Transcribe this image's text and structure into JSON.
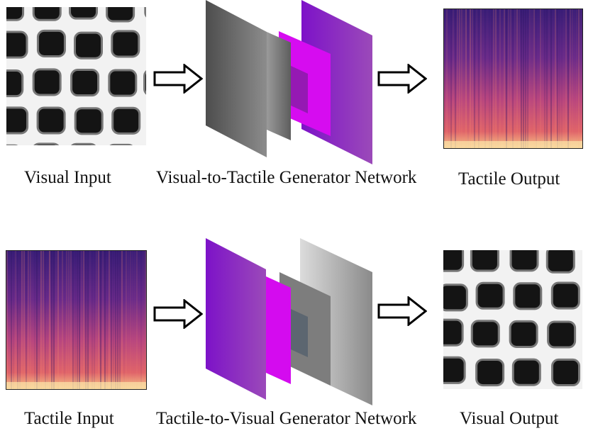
{
  "top_row": {
    "input_label": "Visual Input",
    "network_label": "Visual-to-Tactile Generator Network",
    "output_label": "Tactile Output"
  },
  "bottom_row": {
    "input_label": "Tactile Input",
    "network_label": "Tactile-to-Visual Generator Network",
    "output_label": "Visual Output"
  },
  "colors": {
    "gray_layer": "#6e6e6e",
    "violet_layer": "#8e2bbf",
    "magenta_layer": "#d40bef",
    "spectrogram_low": "#2a1a66",
    "spectrogram_high": "#f3b27a",
    "arrow_stroke": "#000000"
  },
  "icons": {
    "arrow": "right-hollow-arrow-icon",
    "network": "stacked-layers-icon",
    "texture": "grid-texture-image",
    "spectrogram": "spectrogram-image"
  }
}
